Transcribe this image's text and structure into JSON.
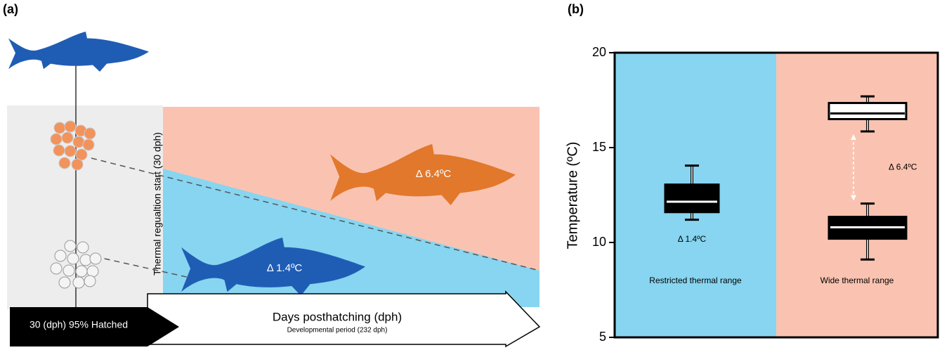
{
  "panel_a": {
    "label": "(a)",
    "regulation_label": "Thermal regualtion start (30 dph)",
    "wide_delta": "Δ 6.4ºC",
    "restricted_delta": "Δ 1.4ºC",
    "hatch_label": "30 (dph) 95% Hatched",
    "x_label": "Days posthatching (dph)",
    "period_label": "Developmental period (232 dph)"
  },
  "chart_data": {
    "type": "box",
    "panel_label": "(b)",
    "ylabel": "Temperature (ºC)",
    "categories": [
      "Restricted thermal range",
      "Wide thermal range"
    ],
    "background_colors": [
      "#87d5f0",
      "#fac3b1"
    ],
    "boxes": [
      [
        {
          "whislo": 11.2,
          "q1": 11.6,
          "med": 12.15,
          "q3": 13.05,
          "whishi": 14.05,
          "color": "#000000"
        }
      ],
      [
        {
          "whislo": 15.85,
          "q1": 16.5,
          "med": 16.8,
          "q3": 17.35,
          "whishi": 17.7,
          "color": "#ffffff"
        },
        {
          "whislo": 9.1,
          "q1": 10.2,
          "med": 10.8,
          "q3": 11.35,
          "whishi": 12.05,
          "color": "#000000"
        }
      ]
    ],
    "annotations": [
      "Δ 1.4ºC",
      "Δ 6.4ºC"
    ],
    "ylim": [
      5,
      20
    ],
    "yticks": [
      5,
      10,
      15,
      20
    ]
  }
}
